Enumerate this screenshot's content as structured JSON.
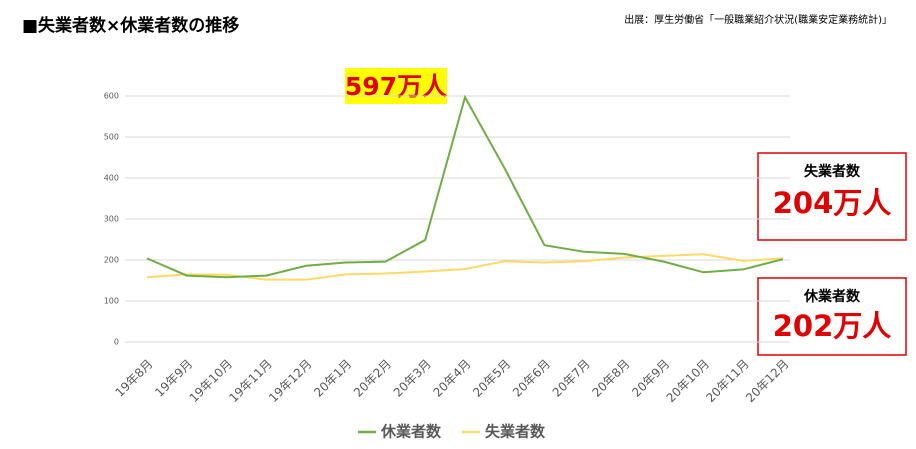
{
  "chart_data": {
    "type": "line",
    "title": "■失業者数×休業者数の推移",
    "source": "出展：厚生労働省「一般職業紹介状況(職業安定業務統計)」",
    "categories": [
      "19年8月",
      "19年9月",
      "19年10月",
      "19年11月",
      "19年12月",
      "20年1月",
      "20年2月",
      "20年3月",
      "20年4月",
      "20年5月",
      "20年6月",
      "20年7月",
      "20年8月",
      "20年9月",
      "20年10月",
      "20年11月",
      "20年12月"
    ],
    "series": [
      {
        "name": "休業者数",
        "color": "#70ad47",
        "values": [
          204,
          162,
          158,
          162,
          186,
          194,
          196,
          249,
          597,
          423,
          236,
          220,
          215,
          196,
          170,
          177,
          202
        ]
      },
      {
        "name": "失業者数",
        "color": "#ffd966",
        "values": [
          158,
          165,
          164,
          152,
          152,
          165,
          167,
          172,
          178,
          197,
          194,
          197,
          206,
          210,
          214,
          198,
          204
        ]
      }
    ],
    "ylim": [
      0,
      600
    ],
    "yticks": [
      0,
      100,
      200,
      300,
      400,
      500,
      600
    ],
    "grid": true,
    "legend": "bottom",
    "annotations": [
      {
        "text": "597万人"
      },
      {
        "title": "失業者数",
        "text": "204万人"
      },
      {
        "title": "休業者数",
        "text": "202万人"
      }
    ]
  }
}
